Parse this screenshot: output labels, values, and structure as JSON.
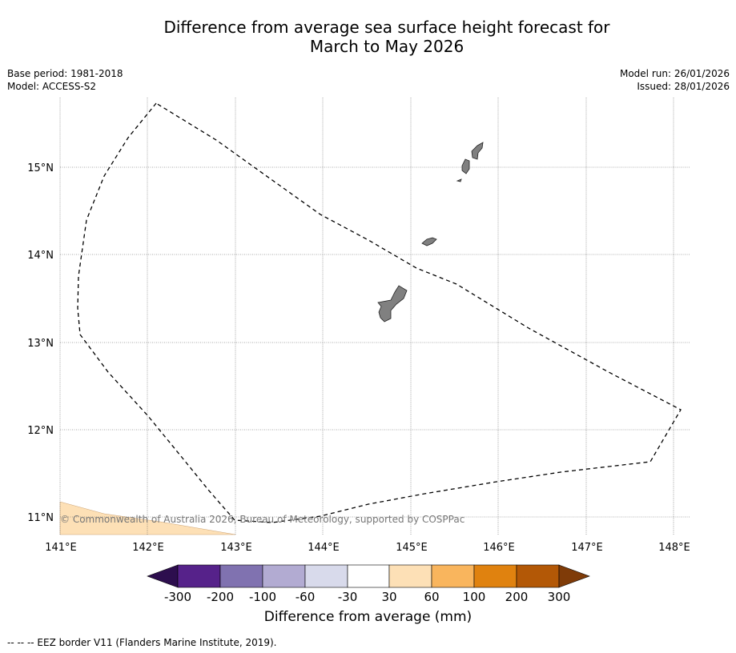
{
  "title": {
    "line1": "Difference from average sea surface height forecast for",
    "line2": "March to May 2026"
  },
  "meta_left": {
    "base_period": "Base period: 1981-2018",
    "model": "Model: ACCESS-S2"
  },
  "meta_right": {
    "model_run": "Model run: 26/01/2026",
    "issued": "Issued: 28/01/2026"
  },
  "map": {
    "lat_labels": [
      "15°N",
      "14°N",
      "13°N",
      "12°N",
      "11°N"
    ],
    "lon_labels": [
      "141°E",
      "142°E",
      "143°E",
      "144°E",
      "145°E",
      "146°E",
      "147°E",
      "148°E"
    ],
    "copyright": "© Commonwealth of Australia 2026, Bureau of Meteorology, supported by COSPPac",
    "land_color": "#808080",
    "anomaly_fill_color": "#fde0b6"
  },
  "colorbar": {
    "ticks": [
      "-300",
      "-200",
      "-100",
      "-60",
      "-30",
      "30",
      "60",
      "100",
      "200",
      "300"
    ],
    "colors": [
      "#2d0e4e",
      "#56228a",
      "#8072b0",
      "#b2abd2",
      "#d8daeb",
      "#ffffff",
      "#fde0b6",
      "#f9b55d",
      "#e0820f",
      "#b35806",
      "#7f3b08"
    ],
    "label": "Difference from average (mm)"
  },
  "footnote": "--  --  -- EEZ border V11 (Flanders Marine Institute, 2019)."
}
